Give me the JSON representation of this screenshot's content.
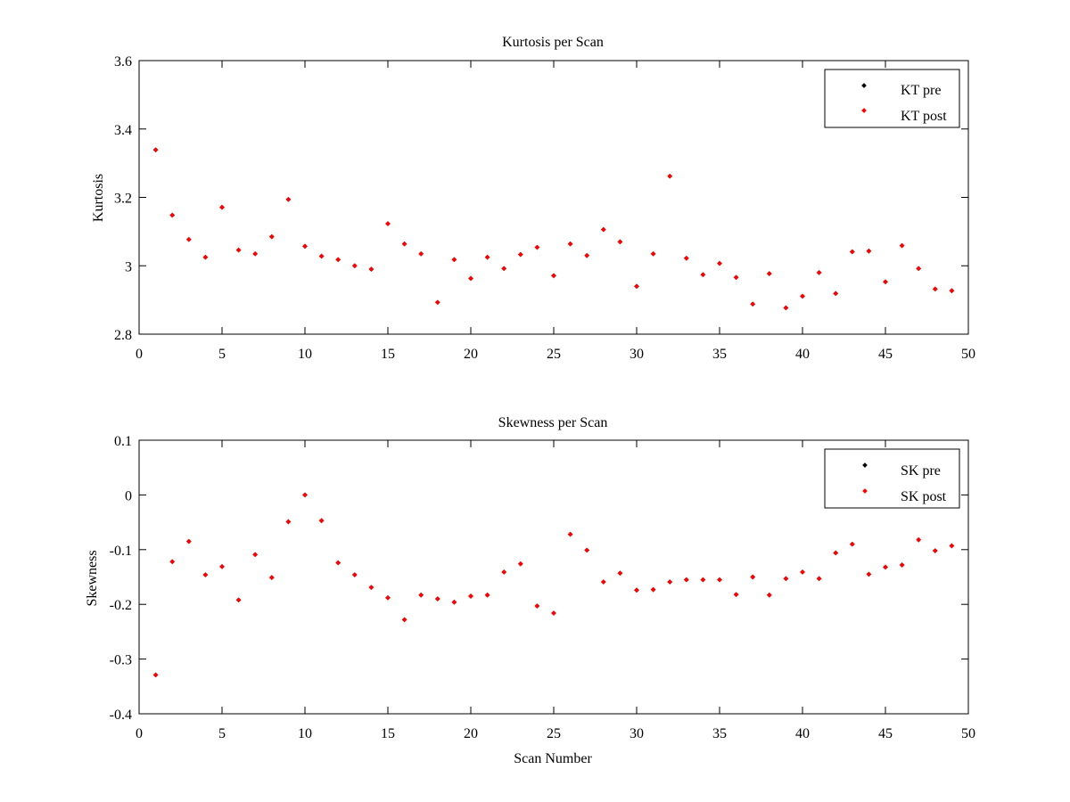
{
  "chart_data": [
    {
      "type": "scatter",
      "title": "Kurtosis per Scan",
      "xlabel": "",
      "ylabel": "Kurtosis",
      "xlim": [
        0,
        50
      ],
      "ylim": [
        2.8,
        3.6
      ],
      "xticks": [
        0,
        5,
        10,
        15,
        20,
        25,
        30,
        35,
        40,
        45,
        50
      ],
      "xtick_labels": [
        "0",
        "5",
        "10",
        "15",
        "20",
        "25",
        "30",
        "35",
        "40",
        "45",
        "50"
      ],
      "yticks": [
        2.8,
        3.0,
        3.2,
        3.4,
        3.6
      ],
      "ytick_labels": [
        "2.8",
        "3",
        "3.2",
        "3.4",
        "3.6"
      ],
      "grid": false,
      "legend_position": "top-right",
      "series": [
        {
          "name": "KT pre",
          "color": "#000000",
          "x": [
            1,
            2,
            3,
            4,
            5,
            6,
            7,
            8,
            9,
            10,
            11,
            12,
            13,
            14,
            15,
            16,
            17,
            18,
            19,
            20,
            21,
            22,
            23,
            24,
            25,
            26,
            27,
            28,
            29,
            30,
            31,
            32,
            33,
            34,
            35,
            36,
            37,
            38,
            39,
            40,
            41,
            42,
            43,
            44,
            45,
            46,
            47,
            48,
            49
          ],
          "y": [
            3.339,
            3.148,
            3.077,
            3.025,
            3.171,
            3.046,
            3.035,
            3.085,
            3.194,
            3.057,
            3.028,
            3.018,
            3.0,
            2.99,
            3.123,
            3.064,
            3.035,
            2.893,
            3.018,
            2.963,
            3.025,
            2.992,
            3.033,
            3.054,
            2.971,
            3.064,
            3.03,
            3.106,
            3.07,
            2.94,
            3.035,
            3.262,
            3.022,
            2.974,
            3.007,
            2.966,
            2.888,
            2.977,
            2.877,
            2.911,
            2.98,
            2.919,
            3.041,
            3.043,
            2.953,
            3.059,
            2.992,
            2.932,
            2.927
          ]
        },
        {
          "name": "KT post",
          "color": "#ff0000",
          "x": [
            1,
            2,
            3,
            4,
            5,
            6,
            7,
            8,
            9,
            10,
            11,
            12,
            13,
            14,
            15,
            16,
            17,
            18,
            19,
            20,
            21,
            22,
            23,
            24,
            25,
            26,
            27,
            28,
            29,
            30,
            31,
            32,
            33,
            34,
            35,
            36,
            37,
            38,
            39,
            40,
            41,
            42,
            43,
            44,
            45,
            46,
            47,
            48,
            49
          ],
          "y": [
            3.339,
            3.148,
            3.077,
            3.025,
            3.171,
            3.046,
            3.035,
            3.085,
            3.194,
            3.057,
            3.028,
            3.018,
            3.0,
            2.99,
            3.123,
            3.064,
            3.035,
            2.893,
            3.018,
            2.963,
            3.025,
            2.992,
            3.033,
            3.054,
            2.971,
            3.064,
            3.03,
            3.106,
            3.07,
            2.94,
            3.035,
            3.262,
            3.022,
            2.974,
            3.007,
            2.966,
            2.888,
            2.977,
            2.877,
            2.911,
            2.98,
            2.919,
            3.041,
            3.043,
            2.953,
            3.059,
            2.992,
            2.932,
            2.927
          ]
        }
      ]
    },
    {
      "type": "scatter",
      "title": "Skewness per Scan",
      "xlabel": "Scan Number",
      "ylabel": "Skewness",
      "xlim": [
        0,
        50
      ],
      "ylim": [
        -0.4,
        0.1
      ],
      "xticks": [
        0,
        5,
        10,
        15,
        20,
        25,
        30,
        35,
        40,
        45,
        50
      ],
      "xtick_labels": [
        "0",
        "5",
        "10",
        "15",
        "20",
        "25",
        "30",
        "35",
        "40",
        "45",
        "50"
      ],
      "yticks": [
        -0.4,
        -0.3,
        -0.2,
        -0.1,
        0,
        0.1
      ],
      "ytick_labels": [
        "-0.4",
        "-0.3",
        "-0.2",
        "-0.1",
        "0",
        "0.1"
      ],
      "grid": false,
      "legend_position": "top-right",
      "series": [
        {
          "name": "SK pre",
          "color": "#000000",
          "x": [
            1,
            2,
            3,
            4,
            5,
            6,
            7,
            8,
            9,
            10,
            11,
            12,
            13,
            14,
            15,
            16,
            17,
            18,
            19,
            20,
            21,
            22,
            23,
            24,
            25,
            26,
            27,
            28,
            29,
            30,
            31,
            32,
            33,
            34,
            35,
            36,
            37,
            38,
            39,
            40,
            41,
            42,
            43,
            44,
            45,
            46,
            47,
            48,
            49
          ],
          "y": [
            -0.329,
            -0.122,
            -0.085,
            -0.146,
            -0.131,
            -0.192,
            -0.109,
            -0.151,
            -0.049,
            0.0,
            -0.047,
            -0.124,
            -0.146,
            -0.169,
            -0.188,
            -0.228,
            -0.183,
            -0.19,
            -0.196,
            -0.185,
            -0.183,
            -0.141,
            -0.126,
            -0.203,
            -0.216,
            -0.072,
            -0.101,
            -0.159,
            -0.143,
            -0.174,
            -0.173,
            -0.159,
            -0.155,
            -0.155,
            -0.155,
            -0.182,
            -0.15,
            -0.183,
            -0.153,
            -0.141,
            -0.153,
            -0.106,
            -0.09,
            -0.145,
            -0.132,
            -0.128,
            -0.082,
            -0.102,
            -0.093
          ]
        },
        {
          "name": "SK post",
          "color": "#ff0000",
          "x": [
            1,
            2,
            3,
            4,
            5,
            6,
            7,
            8,
            9,
            10,
            11,
            12,
            13,
            14,
            15,
            16,
            17,
            18,
            19,
            20,
            21,
            22,
            23,
            24,
            25,
            26,
            27,
            28,
            29,
            30,
            31,
            32,
            33,
            34,
            35,
            36,
            37,
            38,
            39,
            40,
            41,
            42,
            43,
            44,
            45,
            46,
            47,
            48,
            49
          ],
          "y": [
            -0.329,
            -0.122,
            -0.085,
            -0.146,
            -0.131,
            -0.192,
            -0.109,
            -0.151,
            -0.049,
            0.0,
            -0.047,
            -0.124,
            -0.146,
            -0.169,
            -0.188,
            -0.228,
            -0.183,
            -0.19,
            -0.196,
            -0.185,
            -0.183,
            -0.141,
            -0.126,
            -0.203,
            -0.216,
            -0.072,
            -0.101,
            -0.159,
            -0.143,
            -0.174,
            -0.173,
            -0.159,
            -0.155,
            -0.155,
            -0.155,
            -0.182,
            -0.15,
            -0.183,
            -0.153,
            -0.141,
            -0.153,
            -0.106,
            -0.09,
            -0.145,
            -0.132,
            -0.128,
            -0.082,
            -0.102,
            -0.093
          ]
        }
      ]
    }
  ]
}
